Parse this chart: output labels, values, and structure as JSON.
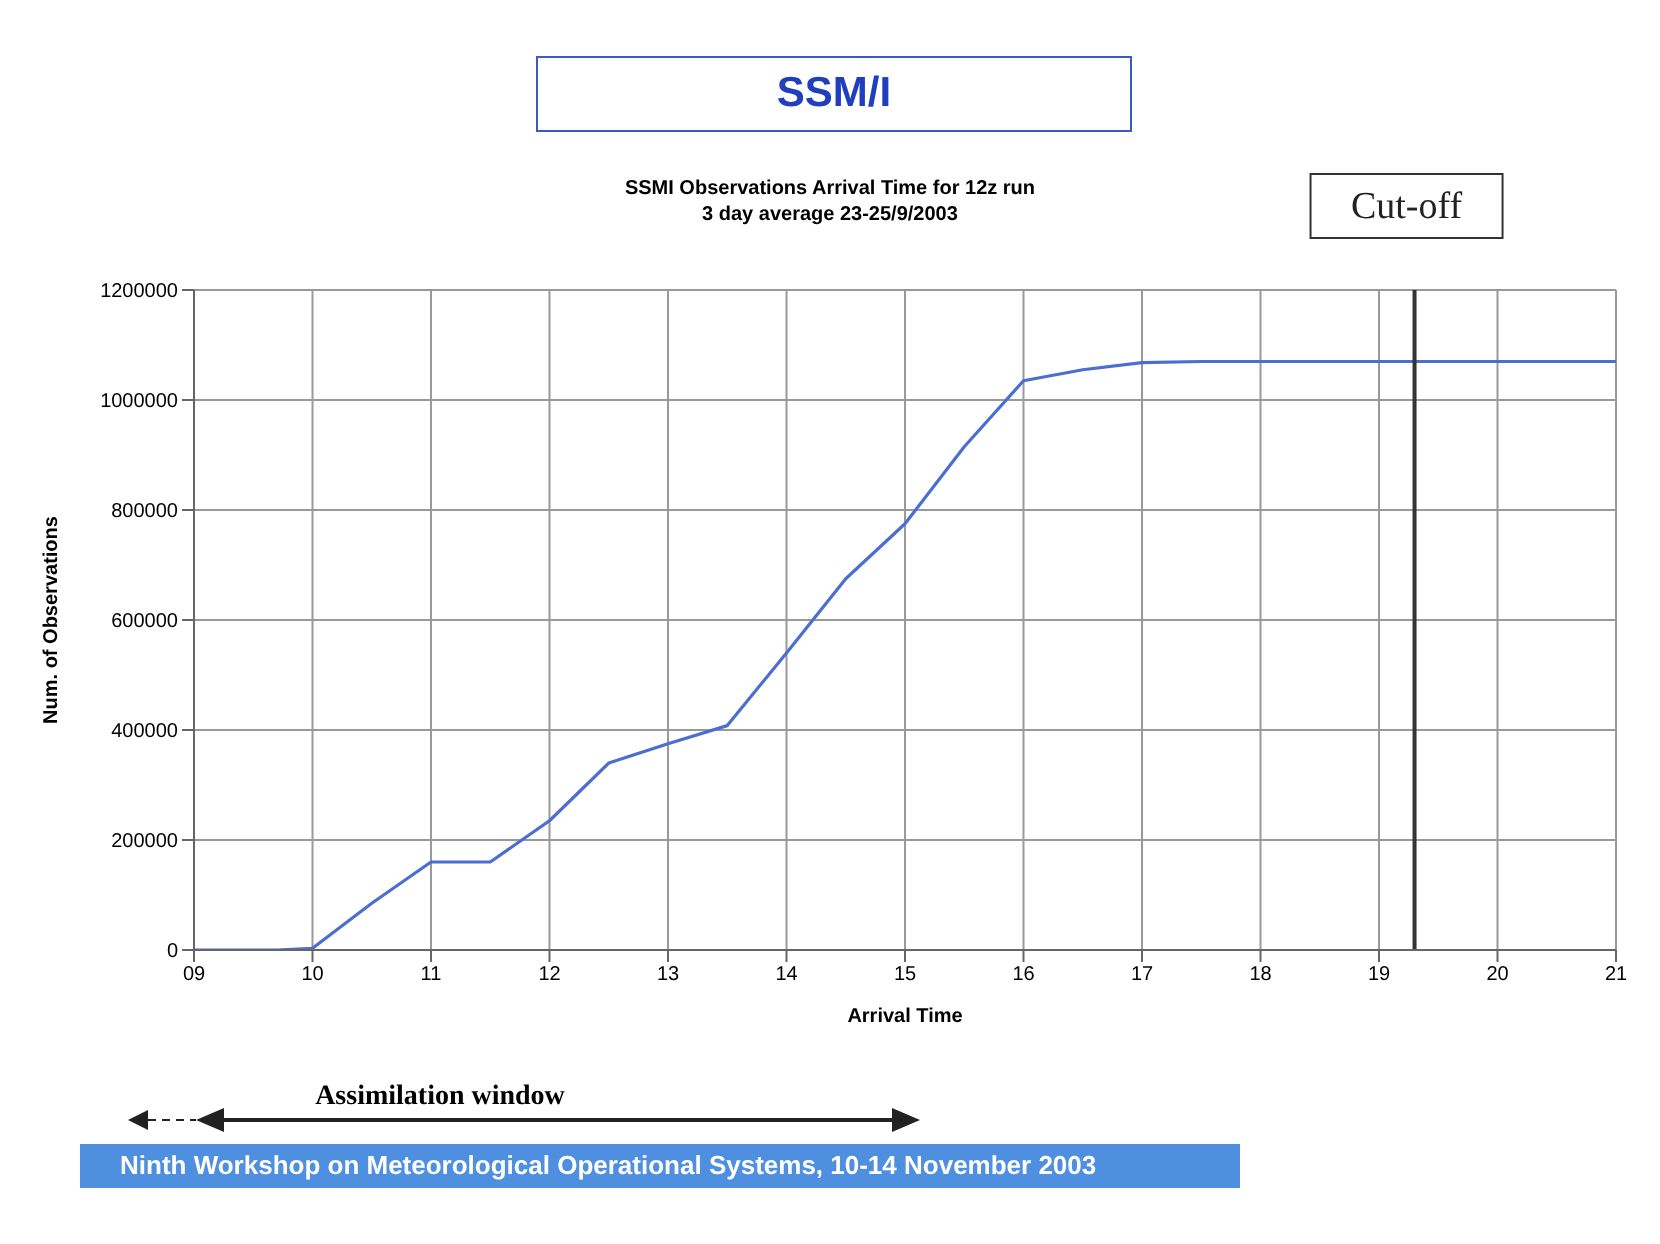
{
  "chart_data": {
    "type": "line",
    "title": "SSM/I",
    "subtitle": "SSMI Observations Arrival Time for 12z run\n3 day average 23-25/9/2003",
    "xlabel": "Arrival Time",
    "ylabel": "Num. of Observations",
    "series": [
      {
        "color": "#4a6fd0",
        "x": [
          9,
          9.7,
          10,
          10.5,
          11,
          11.5,
          12,
          12.5,
          13,
          13.5,
          14,
          14.5,
          15,
          15.5,
          16,
          16.5,
          17,
          17.5,
          21
        ],
        "values": [
          0,
          0,
          3000,
          85000,
          160000,
          160000,
          235000,
          340000,
          375000,
          408000,
          540000,
          675000,
          775000,
          915000,
          1035000,
          1055000,
          1068000,
          1070000,
          1070000
        ]
      }
    ],
    "xlim": [
      9,
      21
    ],
    "xticks": [
      {
        "value": 9,
        "label": "09"
      },
      10,
      11,
      12,
      13,
      14,
      15,
      16,
      17,
      18,
      19,
      20,
      21
    ],
    "ylim": [
      0,
      1200000
    ],
    "yticks": [
      0,
      200000,
      400000,
      600000,
      800000,
      1000000,
      1200000
    ],
    "grid": true,
    "marker": "none",
    "line_style": "solid",
    "ref_lines": [
      {
        "axis": "x",
        "value": 19.3,
        "label": "Cut-off",
        "color": "#333333",
        "line_style": "solid"
      }
    ],
    "annotations": [
      "Assimilation window",
      "Ninth Workshop on Meteorological  Operational Systems, 10-14 November 2003"
    ]
  }
}
